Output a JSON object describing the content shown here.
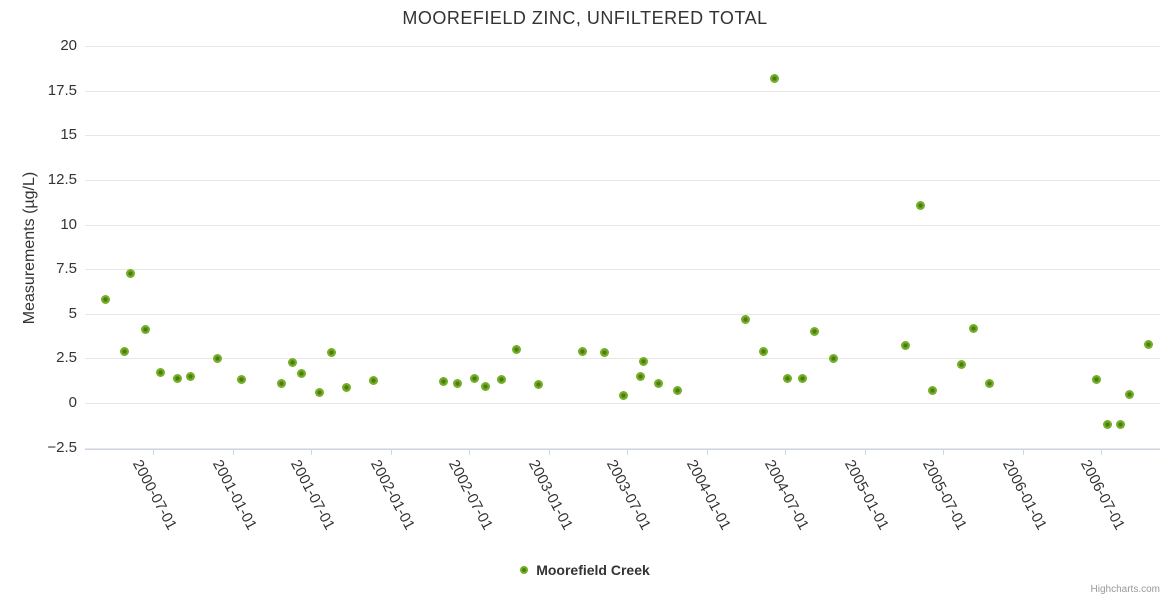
{
  "chart_data": {
    "type": "scatter",
    "title": "MOOREFIELD ZINC, UNFILTERED TOTAL",
    "xlabel": "",
    "ylabel": "Measurements (µg/L)",
    "ylim": [
      -2.5,
      20
    ],
    "yticks": [
      20,
      17.5,
      15,
      12.5,
      10,
      7.5,
      5,
      2.5,
      0,
      -2.5
    ],
    "xticks": [
      "2000-07-01",
      "2001-01-01",
      "2001-07-01",
      "2002-01-01",
      "2002-07-01",
      "2003-01-01",
      "2003-07-01",
      "2004-01-01",
      "2004-07-01",
      "2005-01-01",
      "2005-07-01",
      "2006-01-01",
      "2006-07-01"
    ],
    "grid": true,
    "legend_position": "bottom-center",
    "series": [
      {
        "name": "Moorefield Creek",
        "marker_color": "#73af25",
        "marker_center_color": "#4c7c12",
        "points": [
          {
            "date": "2000-03-14",
            "value": 5.8
          },
          {
            "date": "2000-04-26",
            "value": 2.9
          },
          {
            "date": "2000-05-11",
            "value": 7.25
          },
          {
            "date": "2000-06-13",
            "value": 4.1
          },
          {
            "date": "2000-07-18",
            "value": 1.7
          },
          {
            "date": "2000-08-26",
            "value": 1.35
          },
          {
            "date": "2000-09-26",
            "value": 1.5
          },
          {
            "date": "2000-11-26",
            "value": 2.5
          },
          {
            "date": "2001-01-22",
            "value": 1.3
          },
          {
            "date": "2001-04-24",
            "value": 1.1
          },
          {
            "date": "2001-05-19",
            "value": 2.25
          },
          {
            "date": "2001-06-09",
            "value": 1.65
          },
          {
            "date": "2001-07-20",
            "value": 0.6
          },
          {
            "date": "2001-08-17",
            "value": 2.85
          },
          {
            "date": "2001-09-20",
            "value": 0.85
          },
          {
            "date": "2001-11-23",
            "value": 1.25
          },
          {
            "date": "2002-05-04",
            "value": 1.2
          },
          {
            "date": "2002-06-05",
            "value": 1.1
          },
          {
            "date": "2002-07-13",
            "value": 1.4
          },
          {
            "date": "2002-08-09",
            "value": 0.95
          },
          {
            "date": "2002-09-14",
            "value": 1.3
          },
          {
            "date": "2002-10-19",
            "value": 3.0
          },
          {
            "date": "2002-12-08",
            "value": 1.05
          },
          {
            "date": "2003-03-21",
            "value": 2.9
          },
          {
            "date": "2003-05-09",
            "value": 2.85
          },
          {
            "date": "2003-06-24",
            "value": 0.4
          },
          {
            "date": "2003-08-01",
            "value": 1.5
          },
          {
            "date": "2003-08-09",
            "value": 2.35
          },
          {
            "date": "2003-09-11",
            "value": 1.1
          },
          {
            "date": "2003-10-25",
            "value": 0.7
          },
          {
            "date": "2004-03-30",
            "value": 4.7
          },
          {
            "date": "2004-05-12",
            "value": 2.9
          },
          {
            "date": "2004-06-06",
            "value": 18.2
          },
          {
            "date": "2004-07-06",
            "value": 1.4
          },
          {
            "date": "2004-08-10",
            "value": 1.35
          },
          {
            "date": "2004-09-07",
            "value": 4.0
          },
          {
            "date": "2004-10-19",
            "value": 2.5
          },
          {
            "date": "2005-04-05",
            "value": 3.2
          },
          {
            "date": "2005-05-08",
            "value": 11.05
          },
          {
            "date": "2005-06-06",
            "value": 0.7
          },
          {
            "date": "2005-08-12",
            "value": 2.15
          },
          {
            "date": "2005-09-08",
            "value": 4.15
          },
          {
            "date": "2005-10-16",
            "value": 1.1
          },
          {
            "date": "2006-06-20",
            "value": 1.3
          },
          {
            "date": "2006-07-16",
            "value": -1.2
          },
          {
            "date": "2006-08-13",
            "value": -1.2
          },
          {
            "date": "2006-09-04",
            "value": 0.5
          },
          {
            "date": "2006-10-18",
            "value": 3.25
          }
        ]
      }
    ]
  },
  "legend": {
    "label": "Moorefield Creek"
  },
  "credits": {
    "label": "Highcharts.com"
  },
  "colors": {
    "grid": "#e6e6e6",
    "axis": "#ccd6eb",
    "text": "#333333",
    "credits_text": "#999999",
    "marker": "#73af25",
    "marker_center": "#4c7c12"
  }
}
